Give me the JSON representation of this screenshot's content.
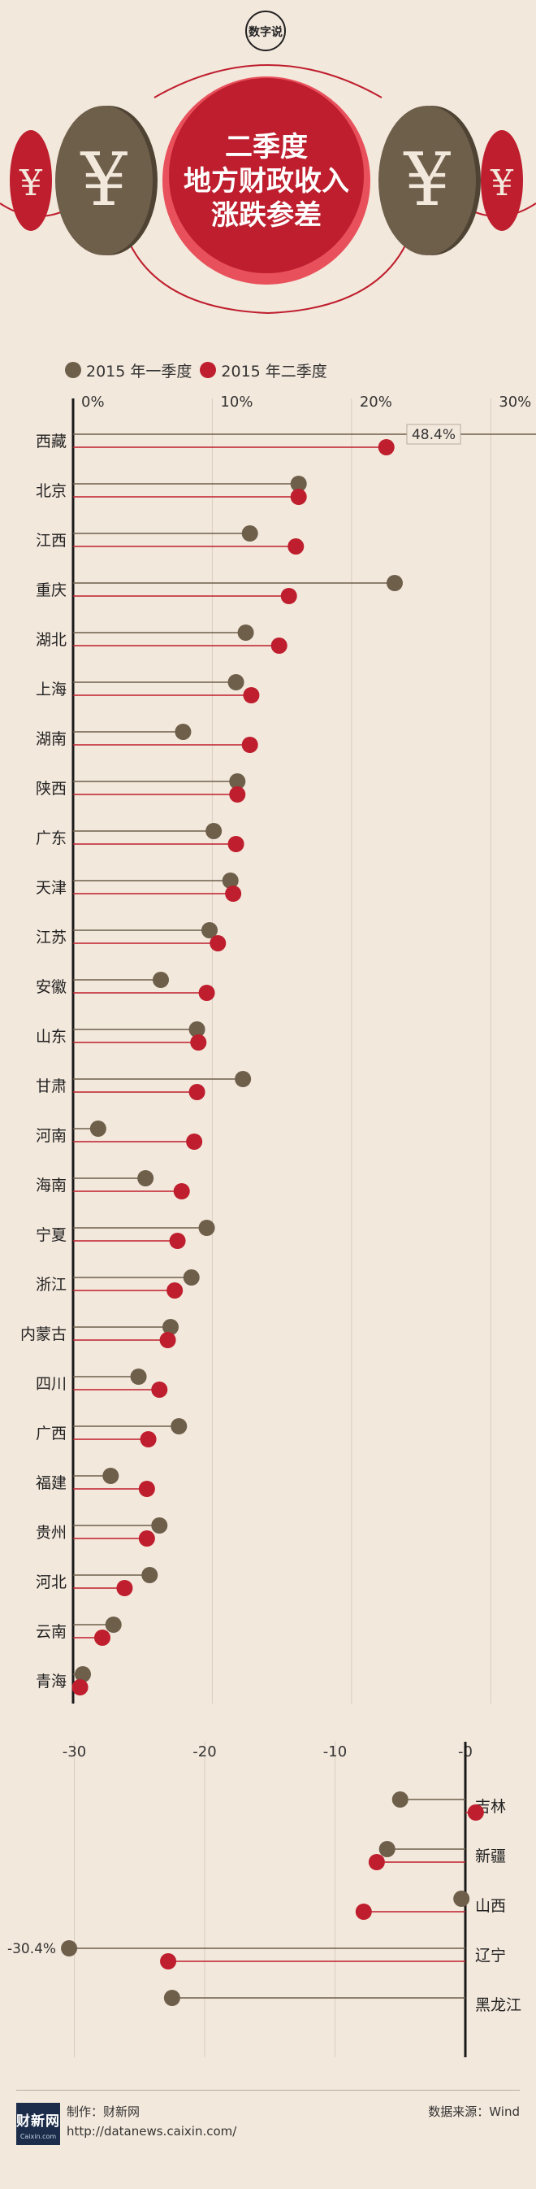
{
  "header": {
    "badge_text": "数字说",
    "title_lines": [
      "二季度",
      "地方财政收入",
      "涨跌参差"
    ],
    "coin_symbol": "¥"
  },
  "colors": {
    "q1": "#6e5f4b",
    "q2": "#be1e2d",
    "background": "#f3e8dc",
    "title_circle": "#be1e2d",
    "axis": "#1a1a1a"
  },
  "legend": {
    "q1_label": "2015 年一季度",
    "q2_label": "2015 年二季度"
  },
  "chart_data": [
    {
      "type": "lollipop",
      "xlim": [
        0,
        35
      ],
      "x_ticks": [
        0,
        10,
        20,
        30
      ],
      "x_tick_labels": [
        "0%",
        "10%",
        "20%",
        "30%"
      ],
      "grid": true,
      "categories": [
        "西藏",
        "北京",
        "江西",
        "重庆",
        "湖北",
        "上海",
        "湖南",
        "陕西",
        "广东",
        "天津",
        "江苏",
        "安徽",
        "山东",
        "甘肃",
        "河南",
        "海南",
        "宁夏",
        "浙江",
        "内蒙古",
        "四川",
        "广西",
        "福建",
        "贵州",
        "河北",
        "云南",
        "青海"
      ],
      "series": [
        {
          "name": "2015 年一季度",
          "values": [
            48.4,
            16.2,
            12.7,
            23.1,
            12.4,
            11.7,
            7.9,
            11.8,
            10.1,
            11.3,
            9.8,
            6.3,
            8.9,
            12.2,
            1.8,
            5.2,
            9.6,
            8.5,
            7.0,
            4.7,
            7.6,
            2.7,
            6.2,
            5.5,
            2.9,
            0.7
          ],
          "value_labels": [
            "48.4%",
            "",
            "",
            "",
            "",
            "",
            "",
            "",
            "",
            "",
            "",
            "",
            "",
            "",
            "",
            "",
            "",
            "",
            "",
            "",
            "",
            "",
            "",
            "",
            "",
            ""
          ]
        },
        {
          "name": "2015 年二季度",
          "values": [
            22.5,
            16.2,
            16.0,
            15.5,
            14.8,
            12.8,
            12.7,
            11.8,
            11.7,
            11.5,
            10.4,
            9.6,
            9.0,
            8.9,
            8.7,
            7.8,
            7.5,
            7.3,
            6.8,
            6.2,
            5.4,
            5.3,
            5.3,
            3.7,
            2.1,
            0.5
          ]
        }
      ]
    },
    {
      "type": "lollipop",
      "xlim": [
        -31,
        0
      ],
      "x_ticks": [
        -30,
        -20,
        -10,
        0
      ],
      "x_tick_labels": [
        "-30",
        "-20",
        "-10",
        "-0"
      ],
      "grid": true,
      "categories": [
        "吉林",
        "新疆",
        "山西",
        "辽宁",
        "黑龙江"
      ],
      "series": [
        {
          "name": "2015 年一季度",
          "values": [
            -5.0,
            -6.0,
            -0.3,
            -30.4,
            -22.5
          ],
          "value_labels": [
            "",
            "",
            "",
            "-30.4%",
            ""
          ]
        },
        {
          "name": "2015 年二季度",
          "values": [
            0.8,
            -6.8,
            -7.8,
            -22.8,
            null
          ]
        }
      ]
    }
  ],
  "footer": {
    "logo_main": "财新网",
    "logo_sub": "Caixin.com",
    "maker": "制作：财新网",
    "url": "http://datanews.caixin.com/",
    "source": "数据来源：Wind"
  }
}
